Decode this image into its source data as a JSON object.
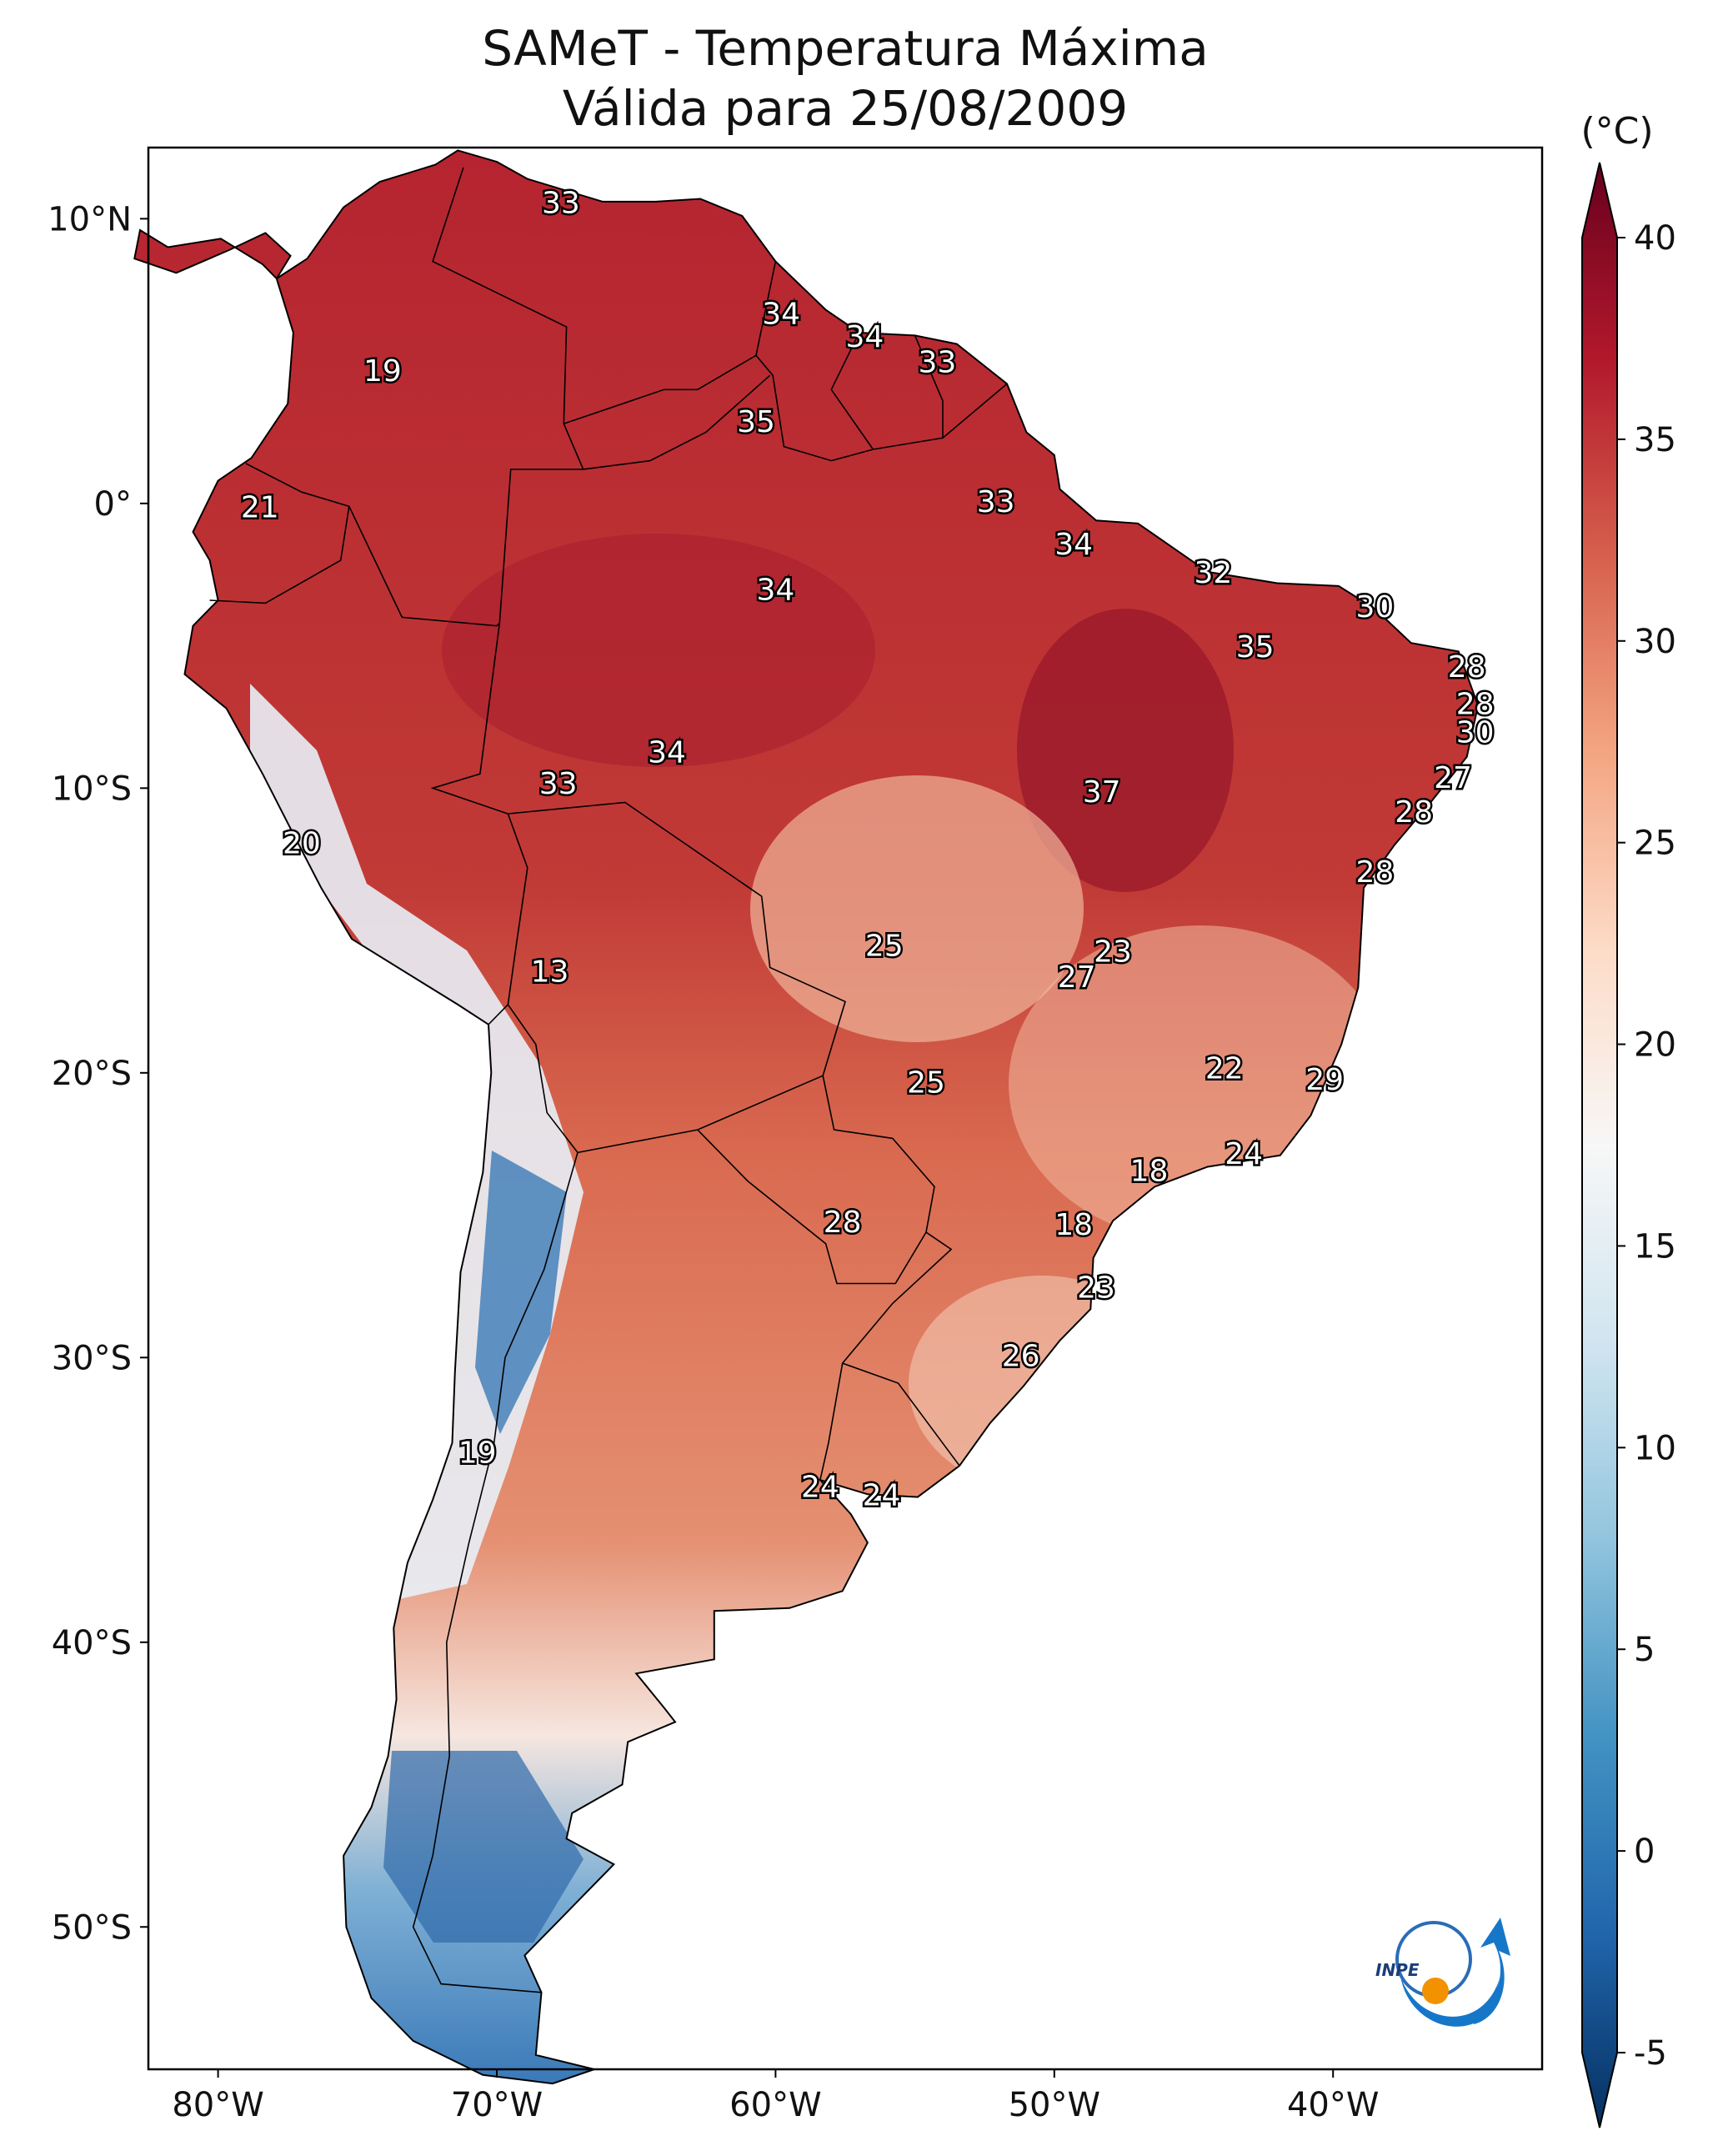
{
  "title": {
    "line1": "SAMeT - Temperatura Máxima",
    "line2": "Válida para 25/08/2009"
  },
  "map": {
    "lon_range": [
      -82.5,
      -32.5
    ],
    "lat_range": [
      -55.0,
      12.5
    ],
    "lat_ticks": [
      {
        "value": 10,
        "label": "10°N"
      },
      {
        "value": 0,
        "label": "0°"
      },
      {
        "value": -10,
        "label": "10°S"
      },
      {
        "value": -20,
        "label": "20°S"
      },
      {
        "value": -30,
        "label": "30°S"
      },
      {
        "value": -40,
        "label": "40°S"
      },
      {
        "value": -50,
        "label": "50°S"
      }
    ],
    "lon_ticks": [
      {
        "value": -80,
        "label": "80°W"
      },
      {
        "value": -70,
        "label": "70°W"
      },
      {
        "value": -60,
        "label": "60°W"
      },
      {
        "value": -50,
        "label": "50°W"
      },
      {
        "value": -40,
        "label": "40°W"
      }
    ]
  },
  "colorbar": {
    "unit": "(°C)",
    "min": -5,
    "max": 40,
    "ticks": [
      {
        "value": 40,
        "label": "40"
      },
      {
        "value": 35,
        "label": "35"
      },
      {
        "value": 30,
        "label": "30"
      },
      {
        "value": 25,
        "label": "25"
      },
      {
        "value": 20,
        "label": "20"
      },
      {
        "value": 15,
        "label": "15"
      },
      {
        "value": 10,
        "label": "10"
      },
      {
        "value": 5,
        "label": "5"
      },
      {
        "value": 0,
        "label": "0"
      },
      {
        "value": -5,
        "label": "-5"
      }
    ],
    "colors": [
      "#053061",
      "#2166ac",
      "#4393c3",
      "#92c5de",
      "#d1e5f0",
      "#f7f7f7",
      "#fddbc7",
      "#f4a582",
      "#d6604d",
      "#b2182b",
      "#67001f"
    ]
  },
  "city_values": [
    {
      "lon": -67.7,
      "lat": 10.5,
      "label": "33"
    },
    {
      "lon": -59.8,
      "lat": 6.6,
      "label": "34"
    },
    {
      "lon": -56.8,
      "lat": 5.8,
      "label": "34"
    },
    {
      "lon": -54.2,
      "lat": 4.9,
      "label": "33"
    },
    {
      "lon": -60.7,
      "lat": 2.8,
      "label": "35"
    },
    {
      "lon": -74.1,
      "lat": 4.6,
      "label": "19"
    },
    {
      "lon": -78.5,
      "lat": -0.2,
      "label": "21"
    },
    {
      "lon": -52.1,
      "lat": 0.0,
      "label": "33"
    },
    {
      "lon": -49.3,
      "lat": -1.5,
      "label": "34"
    },
    {
      "lon": -60.0,
      "lat": -3.1,
      "label": "34"
    },
    {
      "lon": -44.3,
      "lat": -2.5,
      "label": "32"
    },
    {
      "lon": -38.5,
      "lat": -3.7,
      "label": "30"
    },
    {
      "lon": -42.8,
      "lat": -5.1,
      "label": "35"
    },
    {
      "lon": -35.2,
      "lat": -5.8,
      "label": "28"
    },
    {
      "lon": -34.9,
      "lat": -7.1,
      "label": "28"
    },
    {
      "lon": -34.9,
      "lat": -8.1,
      "label": "30"
    },
    {
      "lon": -35.7,
      "lat": -9.7,
      "label": "27"
    },
    {
      "lon": -37.1,
      "lat": -10.9,
      "label": "28"
    },
    {
      "lon": -38.5,
      "lat": -13.0,
      "label": "28"
    },
    {
      "lon": -63.9,
      "lat": -8.8,
      "label": "34"
    },
    {
      "lon": -67.8,
      "lat": -9.9,
      "label": "33"
    },
    {
      "lon": -48.3,
      "lat": -10.2,
      "label": "37"
    },
    {
      "lon": -77.0,
      "lat": -12.0,
      "label": "20"
    },
    {
      "lon": -68.1,
      "lat": -16.5,
      "label": "13"
    },
    {
      "lon": -56.1,
      "lat": -15.6,
      "label": "25"
    },
    {
      "lon": -49.2,
      "lat": -16.7,
      "label": "27"
    },
    {
      "lon": -47.9,
      "lat": -15.8,
      "label": "23"
    },
    {
      "lon": -54.6,
      "lat": -20.4,
      "label": "25"
    },
    {
      "lon": -43.9,
      "lat": -19.9,
      "label": "22"
    },
    {
      "lon": -40.3,
      "lat": -20.3,
      "label": "29"
    },
    {
      "lon": -46.6,
      "lat": -23.5,
      "label": "18"
    },
    {
      "lon": -43.2,
      "lat": -22.9,
      "label": "24"
    },
    {
      "lon": -49.3,
      "lat": -25.4,
      "label": "18"
    },
    {
      "lon": -57.6,
      "lat": -25.3,
      "label": "28"
    },
    {
      "lon": -48.5,
      "lat": -27.6,
      "label": "23"
    },
    {
      "lon": -51.2,
      "lat": -30.0,
      "label": "26"
    },
    {
      "lon": -70.7,
      "lat": -33.4,
      "label": "19"
    },
    {
      "lon": -58.4,
      "lat": -34.6,
      "label": "24"
    },
    {
      "lon": -56.2,
      "lat": -34.9,
      "label": "24"
    }
  ],
  "logo": {
    "text": "INPE"
  }
}
